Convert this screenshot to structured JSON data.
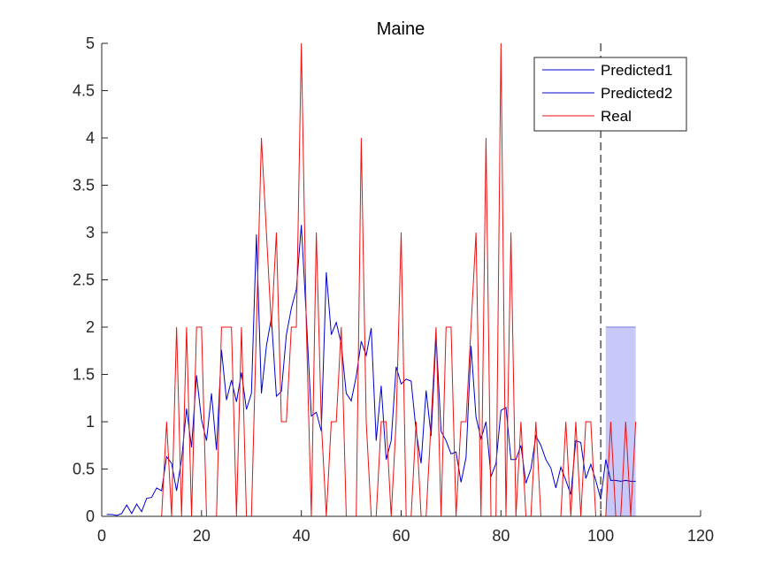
{
  "chart_data": {
    "type": "line",
    "title": "Maine",
    "xlabel": "",
    "ylabel": "",
    "xlim": [
      0,
      120
    ],
    "ylim": [
      0,
      5
    ],
    "xticks": [
      0,
      20,
      40,
      60,
      80,
      100,
      120
    ],
    "yticks": [
      0,
      0.5,
      1,
      1.5,
      2,
      2.5,
      3,
      3.5,
      4,
      4.5,
      5
    ],
    "xtick_labels": [
      "0",
      "20",
      "40",
      "60",
      "80",
      "100",
      "120"
    ],
    "ytick_labels": [
      "0",
      "0.5",
      "1",
      "1.5",
      "2",
      "2.5",
      "3",
      "3.5",
      "4",
      "4.5",
      "5"
    ],
    "grid": false,
    "legend_position": "top-right",
    "vline_x": 100,
    "shaded_interval": {
      "x_start": 101,
      "x_end": 107,
      "y_min": 0,
      "y_max": 2,
      "color": "#c8c8fa"
    },
    "series": [
      {
        "name": "Predicted1",
        "color": "#0000cc",
        "x": [
          1,
          2,
          3,
          4,
          5,
          6,
          7,
          8,
          9,
          10,
          11,
          12,
          13,
          14,
          15,
          16,
          17,
          18,
          19,
          20,
          21,
          22,
          23,
          24,
          25,
          26,
          27,
          28,
          29,
          30,
          31,
          32,
          33,
          34,
          35,
          36,
          37,
          38,
          39,
          40,
          41,
          42,
          43,
          44,
          45,
          46,
          47,
          48,
          49,
          50,
          51,
          52,
          53,
          54,
          55,
          56,
          57,
          58,
          59,
          60,
          61,
          62,
          63,
          64,
          65,
          66,
          67,
          68,
          69,
          70,
          71,
          72,
          73,
          74,
          75,
          76,
          77,
          78,
          79,
          80,
          81,
          82,
          83,
          84,
          85,
          86,
          87,
          88,
          89,
          90,
          91,
          92,
          93,
          94,
          95,
          96,
          97,
          98,
          99,
          100,
          101
        ],
        "y": [
          0.02,
          0.02,
          0.01,
          0.03,
          0.12,
          0.03,
          0.13,
          0.05,
          0.19,
          0.2,
          0.3,
          0.27,
          0.63,
          0.56,
          0.27,
          0.6,
          1.14,
          0.73,
          1.49,
          1.02,
          0.8,
          1.3,
          0.7,
          1.76,
          1.23,
          1.44,
          1.21,
          1.52,
          1.13,
          1.3,
          2.98,
          1.3,
          1.8,
          2.1,
          1.27,
          1.32,
          1.92,
          2.2,
          2.4,
          3.08,
          2.1,
          1.06,
          1.1,
          0.9,
          2.58,
          1.92,
          2.05,
          1.82,
          1.3,
          1.22,
          1.48,
          1.85,
          1.7,
          1.99,
          0.8,
          1.38,
          0.6,
          0.8,
          1.58,
          1.4,
          1.45,
          1.43,
          0.9,
          0.56,
          1.33,
          0.85,
          1.9,
          0.9,
          0.8,
          0.66,
          0.68,
          0.36,
          0.62,
          1.8,
          1.05,
          0.82,
          1.0,
          0.42,
          0.56,
          1.12,
          1.15,
          0.6,
          0.6,
          0.75,
          0.35,
          0.5,
          0.85,
          0.75,
          0.6,
          0.51,
          0.3,
          0.52,
          0.38,
          0.23,
          0.8,
          0.78,
          0.4,
          0.55,
          0.38,
          0.18,
          0.6
        ]
      },
      {
        "name": "Predicted2",
        "color": "#0000cc",
        "x": [
          101,
          102,
          103,
          104,
          105,
          106,
          107
        ],
        "y": [
          0.6,
          0.38,
          0.38,
          0.37,
          0.38,
          0.37,
          0.37
        ]
      },
      {
        "name": "Real",
        "color": "#ee1111",
        "x": [
          1,
          2,
          3,
          4,
          5,
          6,
          7,
          8,
          9,
          10,
          11,
          12,
          13,
          14,
          15,
          16,
          17,
          18,
          19,
          20,
          21,
          22,
          23,
          24,
          25,
          26,
          27,
          28,
          29,
          30,
          31,
          32,
          33,
          34,
          35,
          36,
          37,
          38,
          39,
          40,
          41,
          42,
          43,
          44,
          45,
          46,
          47,
          48,
          49,
          50,
          51,
          52,
          53,
          54,
          55,
          56,
          57,
          58,
          59,
          60,
          61,
          62,
          63,
          64,
          65,
          66,
          67,
          68,
          69,
          70,
          71,
          72,
          73,
          74,
          75,
          76,
          77,
          78,
          79,
          80,
          81,
          82,
          83,
          84,
          85,
          86,
          87,
          88,
          89,
          90,
          91,
          92,
          93,
          94,
          95,
          96,
          97,
          98,
          99,
          100,
          101,
          102,
          103,
          104,
          105,
          106,
          107
        ],
        "y": [
          0,
          0,
          0,
          0,
          0,
          0,
          0,
          0,
          0,
          0,
          0,
          0,
          1,
          0,
          2,
          0,
          2,
          0,
          2,
          2,
          0,
          0,
          0,
          2,
          2,
          2,
          0,
          2,
          0,
          0,
          2,
          4,
          3,
          2,
          3,
          1,
          1,
          2,
          2,
          5,
          2,
          0,
          3,
          1,
          0,
          1,
          1,
          2,
          0,
          0,
          0,
          4,
          1,
          0,
          0,
          1,
          1,
          0,
          1,
          3,
          0,
          0,
          1,
          0,
          0,
          1,
          2,
          0,
          2,
          2,
          0,
          1,
          1,
          2,
          3,
          0,
          4,
          0,
          0,
          5,
          0,
          3,
          0,
          1,
          0,
          0,
          1,
          0,
          0,
          0,
          0,
          0,
          1,
          0,
          1,
          0,
          1,
          1,
          0,
          0,
          0,
          1,
          0,
          0,
          1,
          0,
          1
        ]
      }
    ]
  }
}
